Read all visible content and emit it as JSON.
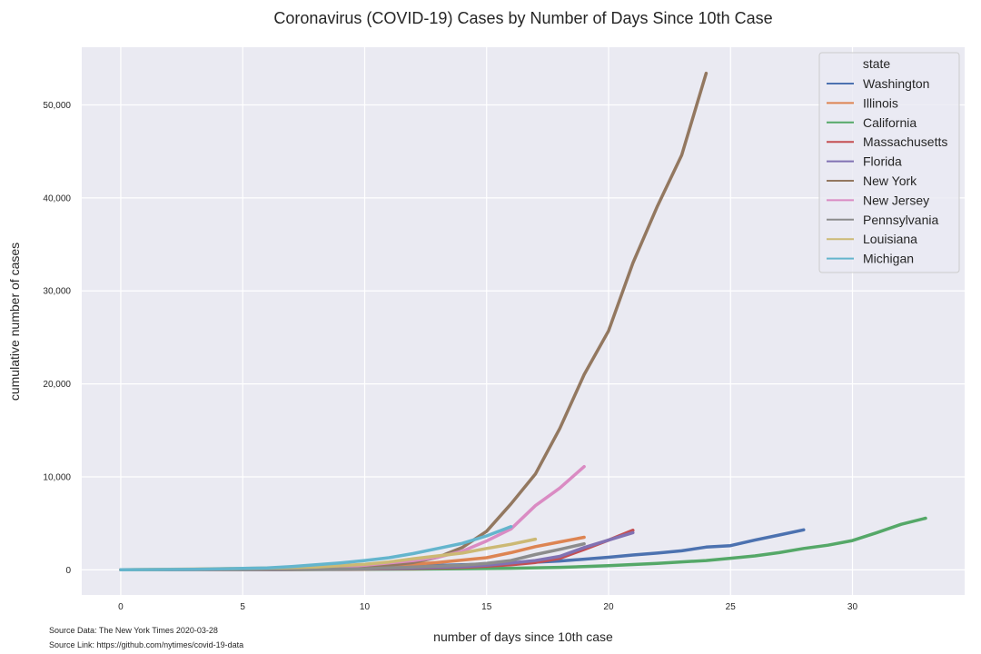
{
  "chart_data": {
    "type": "line",
    "title": "Coronavirus (COVID-19) Cases by Number of Days Since 10th Case",
    "xlabel": "number of days since 10th case",
    "ylabel": "cumulative number of cases",
    "xlim": [
      -1.6,
      34.6
    ],
    "ylim": [
      -2700,
      56200
    ],
    "x_ticks": [
      0,
      5,
      10,
      15,
      20,
      25,
      30
    ],
    "y_ticks": [
      0,
      10000,
      20000,
      30000,
      40000,
      50000
    ],
    "y_tick_labels": [
      "0",
      "10,000",
      "20,000",
      "30,000",
      "40,000",
      "50,000"
    ],
    "grid": true,
    "legend_title": "state",
    "legend_position": "top-right",
    "series": [
      {
        "name": "Washington",
        "color": "#4c72b0",
        "x": [
          0,
          2,
          4,
          6,
          8,
          10,
          12,
          14,
          16,
          18,
          19,
          20,
          21,
          22,
          23,
          24,
          25,
          26,
          27,
          28
        ],
        "y": [
          10,
          20,
          40,
          80,
          150,
          250,
          400,
          550,
          700,
          950,
          1150,
          1350,
          1600,
          1800,
          2050,
          2450,
          2600,
          3200,
          3750,
          4300
        ]
      },
      {
        "name": "Illinois",
        "color": "#dd8452",
        "x": [
          0,
          4,
          6,
          8,
          10,
          11,
          12,
          13,
          14,
          15,
          16,
          17,
          18,
          19
        ],
        "y": [
          10,
          20,
          40,
          100,
          250,
          400,
          600,
          800,
          1050,
          1300,
          1850,
          2500,
          3000,
          3500
        ]
      },
      {
        "name": "California",
        "color": "#55a868",
        "x": [
          0,
          5,
          10,
          12,
          14,
          16,
          18,
          20,
          22,
          24,
          25,
          26,
          27,
          28,
          29,
          30,
          31,
          32,
          33
        ],
        "y": [
          10,
          20,
          50,
          80,
          120,
          170,
          270,
          450,
          700,
          1000,
          1250,
          1500,
          1850,
          2300,
          2650,
          3150,
          4000,
          4900,
          5550
        ]
      },
      {
        "name": "Massachusetts",
        "color": "#c44e52",
        "x": [
          0,
          5,
          10,
          12,
          14,
          15,
          16,
          17,
          18,
          19,
          20,
          21
        ],
        "y": [
          10,
          20,
          80,
          150,
          280,
          400,
          550,
          800,
          1250,
          2200,
          3200,
          4250
        ]
      },
      {
        "name": "Florida",
        "color": "#8172b3",
        "x": [
          0,
          5,
          10,
          12,
          14,
          15,
          16,
          17,
          18,
          19,
          20,
          21
        ],
        "y": [
          10,
          20,
          100,
          200,
          350,
          500,
          750,
          1000,
          1450,
          2400,
          3200,
          4000
        ]
      },
      {
        "name": "New York",
        "color": "#937860",
        "x": [
          0,
          4,
          8,
          10,
          11,
          12,
          13,
          14,
          15,
          16,
          17,
          18,
          19,
          20,
          21,
          22,
          23,
          24
        ],
        "y": [
          10,
          30,
          100,
          300,
          500,
          800,
          1350,
          2400,
          4150,
          7100,
          10300,
          15200,
          21000,
          25700,
          33000,
          39100,
          44600,
          53400
        ]
      },
      {
        "name": "New Jersey",
        "color": "#da8bc3",
        "x": [
          0,
          4,
          8,
          10,
          12,
          13,
          14,
          15,
          16,
          17,
          18,
          19
        ],
        "y": [
          10,
          20,
          150,
          500,
          1000,
          1350,
          2000,
          3100,
          4400,
          6900,
          8800,
          11100
        ]
      },
      {
        "name": "Pennsylvania",
        "color": "#8c8c8c",
        "x": [
          0,
          5,
          10,
          12,
          14,
          15,
          16,
          17,
          18,
          19
        ],
        "y": [
          10,
          30,
          100,
          300,
          500,
          700,
          1000,
          1650,
          2200,
          2800
        ]
      },
      {
        "name": "Louisiana",
        "color": "#ccb974",
        "x": [
          0,
          3,
          6,
          8,
          10,
          11,
          12,
          13,
          14,
          15,
          16,
          17
        ],
        "y": [
          10,
          80,
          190,
          300,
          600,
          850,
          1200,
          1500,
          1800,
          2300,
          2750,
          3300
        ]
      },
      {
        "name": "Michigan",
        "color": "#64b5cd",
        "x": [
          0,
          3,
          6,
          7,
          8,
          9,
          10,
          11,
          12,
          13,
          14,
          15,
          16
        ],
        "y": [
          10,
          60,
          200,
          350,
          550,
          750,
          1000,
          1300,
          1750,
          2300,
          2850,
          3650,
          4650
        ]
      }
    ]
  },
  "source": {
    "data": "Source Data: The New York Times 2020-03-28",
    "link": "Source Link: https://github.com/nytimes/covid-19-data"
  }
}
